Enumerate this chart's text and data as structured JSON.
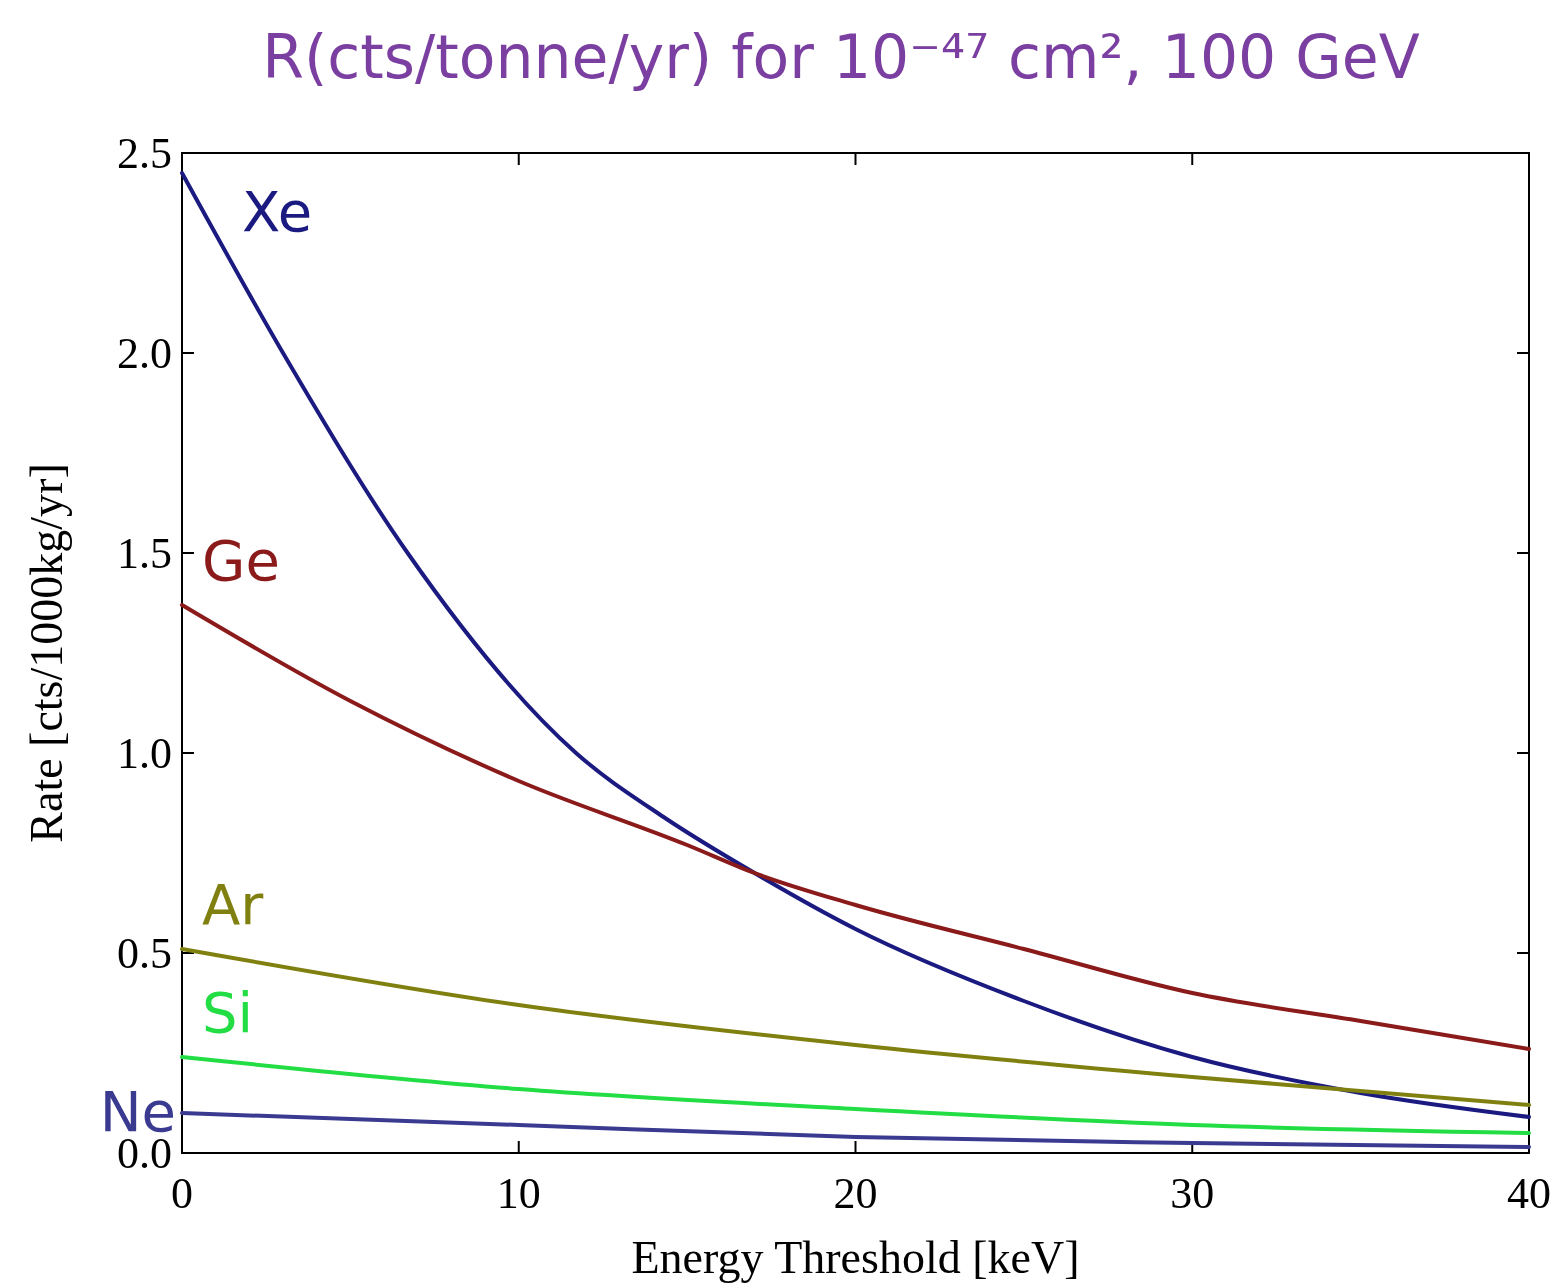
{
  "chart_data": {
    "type": "line",
    "title": "R(cts/tonne/yr) for 10⁻⁴⁷ cm², 100 GeV",
    "xlabel": "Energy Threshold [keV]",
    "ylabel": "Rate [cts/1000kg/yr]",
    "xlim": [
      0,
      40
    ],
    "ylim": [
      0,
      2.5
    ],
    "xticks": [
      0,
      10,
      20,
      30,
      40
    ],
    "yticks": [
      {
        "value": 0,
        "label": "0.0"
      },
      {
        "value": 0.5,
        "label": "0.5"
      },
      {
        "value": 1,
        "label": "1.0"
      },
      {
        "value": 1.5,
        "label": "1.5"
      },
      {
        "value": 2,
        "label": "2.0"
      },
      {
        "value": 2.5,
        "label": "2.5"
      }
    ],
    "grid": false,
    "marker": "none",
    "line_style": "solid",
    "series": [
      {
        "name": "Xe",
        "color": "#1a1a80",
        "x": [
          0,
          3,
          6.7,
          11.7,
          14.3,
          17,
          20,
          25,
          30,
          35,
          40
        ],
        "values": [
          2.45,
          2.0,
          1.5,
          1.0,
          0.84,
          0.7,
          0.56,
          0.38,
          0.24,
          0.15,
          0.09
        ]
      },
      {
        "name": "Ge",
        "color": "#8b1a1a",
        "x": [
          0,
          5,
          10,
          15,
          17,
          20,
          25,
          30,
          35,
          40
        ],
        "values": [
          1.37,
          1.13,
          0.93,
          0.77,
          0.7,
          0.62,
          0.51,
          0.4,
          0.33,
          0.26
        ]
      },
      {
        "name": "Ar",
        "color": "#808010",
        "x": [
          0,
          10,
          20,
          30,
          40
        ],
        "values": [
          0.51,
          0.37,
          0.27,
          0.19,
          0.12
        ]
      },
      {
        "name": "Si",
        "color": "#22dd44",
        "x": [
          0,
          10,
          20,
          30,
          40
        ],
        "values": [
          0.24,
          0.16,
          0.11,
          0.07,
          0.05
        ]
      },
      {
        "name": "Ne",
        "color": "#3a3a90",
        "x": [
          0,
          10,
          20,
          30,
          40
        ],
        "values": [
          0.1,
          0.07,
          0.04,
          0.025,
          0.015
        ]
      }
    ]
  }
}
